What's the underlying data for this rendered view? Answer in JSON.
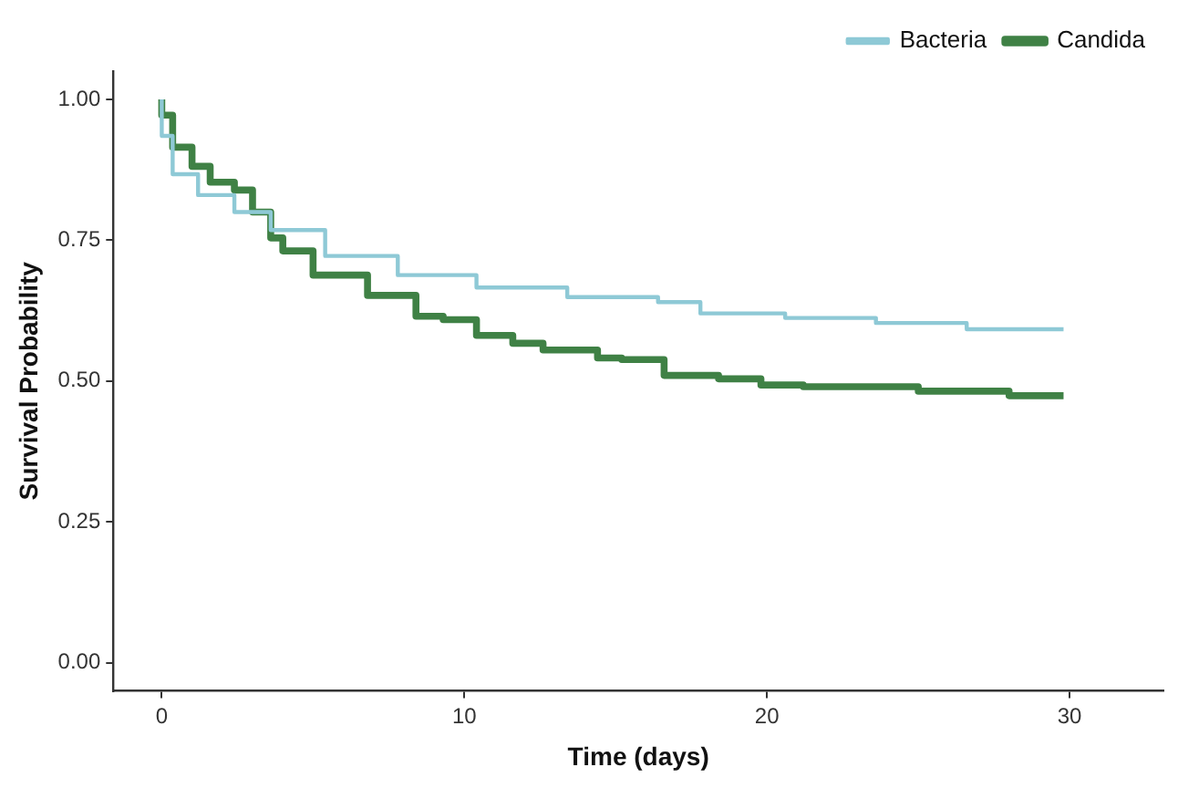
{
  "chart_data": {
    "type": "step",
    "xlabel": "Time (days)",
    "ylabel": "Survival Probability",
    "xlim": [
      -1.6,
      33.1
    ],
    "xticks": [
      0,
      10,
      20,
      30
    ],
    "ylim": [
      -0.05,
      1.05
    ],
    "yticks": [
      {
        "value": 0,
        "label": "0.00"
      },
      {
        "value": 0.25,
        "label": "0.25"
      },
      {
        "value": 0.5,
        "label": "0.50"
      },
      {
        "value": 0.75,
        "label": "0.75"
      },
      {
        "value": 1,
        "label": "1.00"
      }
    ],
    "grid": false,
    "legend": "top right",
    "series": [
      {
        "name": "Bacteria",
        "color": "#8ec9d6",
        "x": [
          0,
          0.36,
          1.2,
          2.4,
          3.6,
          5.4,
          7.8,
          10.4,
          13.4,
          16.4,
          17.8,
          20.6,
          23.6,
          26.6,
          29.8
        ],
        "values": [
          1,
          0.935,
          0.867,
          0.83,
          0.8,
          0.768,
          0.722,
          0.688,
          0.666,
          0.649,
          0.64,
          0.62,
          0.612,
          0.603,
          0.592
        ]
      },
      {
        "name": "Candida",
        "color": "#3f8145",
        "x": [
          0,
          0.36,
          1.0,
          1.6,
          2.4,
          3.0,
          3.6,
          4.0,
          5.0,
          6.8,
          8.4,
          9.3,
          10.4,
          11.6,
          12.6,
          14.4,
          15.2,
          16.6,
          18.4,
          19.8,
          21.2,
          25.0,
          28.0,
          29.8
        ],
        "values": [
          1,
          0.972,
          0.915,
          0.881,
          0.853,
          0.839,
          0.8,
          0.754,
          0.731,
          0.688,
          0.652,
          0.615,
          0.609,
          0.581,
          0.567,
          0.555,
          0.541,
          0.538,
          0.51,
          0.504,
          0.493,
          0.49,
          0.482,
          0.474
        ]
      }
    ]
  }
}
